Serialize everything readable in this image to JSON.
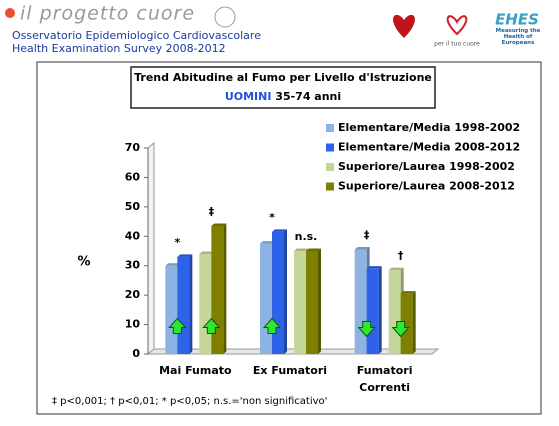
{
  "header": {
    "logo": "il progetto cuore",
    "subtitle_lines": [
      "Osservatorio Epidemiologico Cardiovascolare",
      "Health Examination Survey 2008-2012"
    ],
    "partner_logos": [
      "per il tuo cuore",
      "EHES",
      "Measuring the Health of Europeans"
    ]
  },
  "chart_data": {
    "type": "bar",
    "title": "Trend Abitudine al Fumo per Livello d'Istruzione",
    "subtitle": [
      "UOMINI",
      "35-74 anni"
    ],
    "ylabel": "%",
    "categories": [
      "Mai Fumato",
      "Ex Fumatori",
      "Fumatori Correnti"
    ],
    "series": [
      {
        "name": "Elementare/Media 1998-2002",
        "color": "#8db3e2",
        "values": [
          30,
          37.5,
          35.5
        ]
      },
      {
        "name": "Elementare/Media 2008-2012",
        "color": "#2e62e8",
        "values": [
          33,
          41.5,
          29
        ]
      },
      {
        "name": "Superiore/Laurea 1998-2002",
        "color": "#c4d79b",
        "values": [
          34,
          35,
          28.5
        ]
      },
      {
        "name": "Superiore/Laurea 2008-2012",
        "color": "#7f7f00",
        "values": [
          43.5,
          35,
          20.5
        ]
      }
    ],
    "significance": [
      [
        "*",
        "‡"
      ],
      [
        "*",
        "n.s."
      ],
      [
        "‡",
        "†"
      ]
    ],
    "trend_arrows": [
      [
        "up",
        "up"
      ],
      [
        "up",
        null
      ],
      [
        "down",
        "down"
      ]
    ],
    "ylim": [
      0,
      70
    ],
    "yticks": [
      0,
      10,
      20,
      30,
      40,
      50,
      60,
      70
    ],
    "legend": "top-right",
    "footnote": "‡ p<0,001; † p<0,01; * p<0,05; n.s.='non significativo'"
  }
}
